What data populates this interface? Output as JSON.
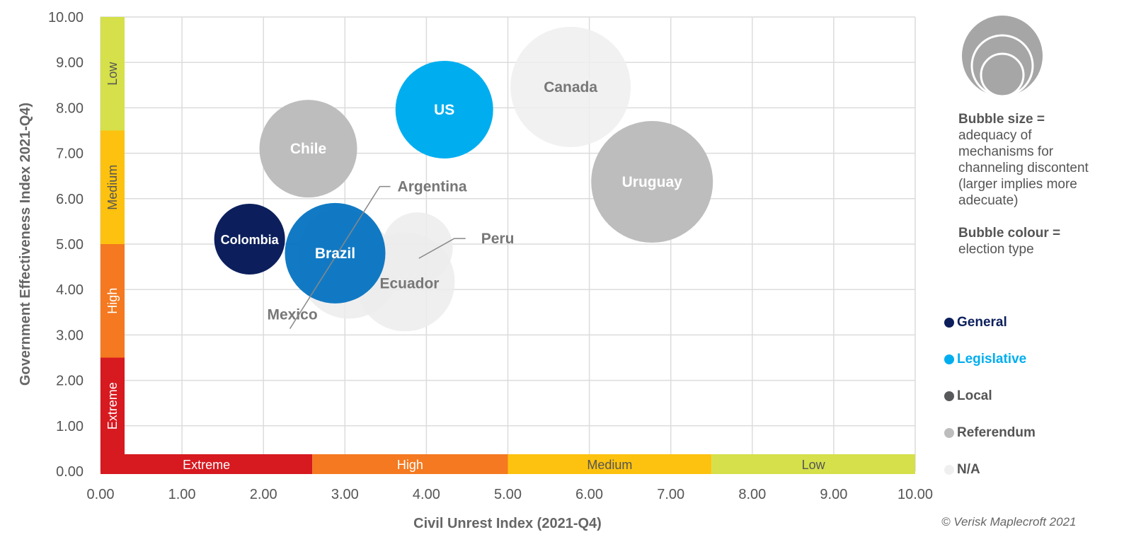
{
  "chart_data": {
    "type": "scatter",
    "subtype": "bubble",
    "xlabel": "Civil Unrest Index (2021-Q4)",
    "ylabel": "Government Effectiveness Index 2021-Q4)",
    "xlim": [
      0,
      10
    ],
    "ylim": [
      0,
      10
    ],
    "xticks": [
      "0.00",
      "1.00",
      "2.00",
      "3.00",
      "4.00",
      "5.00",
      "6.00",
      "7.00",
      "8.00",
      "9.00",
      "10.00"
    ],
    "yticks": [
      "0.00",
      "1.00",
      "2.00",
      "3.00",
      "4.00",
      "5.00",
      "6.00",
      "7.00",
      "8.00",
      "9.00",
      "10.00"
    ],
    "grid": true,
    "x_bands": [
      {
        "label": "Extreme",
        "from": 0,
        "to": 2.6,
        "color": "#d71920"
      },
      {
        "label": "High",
        "from": 2.6,
        "to": 5.0,
        "color": "#f47920"
      },
      {
        "label": "Medium",
        "from": 5.0,
        "to": 7.5,
        "color": "#fdc20f"
      },
      {
        "label": "Low",
        "from": 7.5,
        "to": 10,
        "color": "#d5e04a"
      }
    ],
    "y_bands": [
      {
        "label": "Extreme",
        "from": 0.4,
        "to": 2.5,
        "color": "#d71920"
      },
      {
        "label": "High",
        "from": 2.5,
        "to": 5.0,
        "color": "#f47920"
      },
      {
        "label": "Medium",
        "from": 5.0,
        "to": 7.5,
        "color": "#fdc20f"
      },
      {
        "label": "Low",
        "from": 7.5,
        "to": 10,
        "color": "#d5e04a"
      }
    ],
    "points": [
      {
        "label": "Canada",
        "x": 5.77,
        "y": 8.46,
        "size": 85,
        "type": "N/A",
        "color": "#efefef",
        "label_color": "#777777"
      },
      {
        "label": "Uruguay",
        "x": 6.77,
        "y": 6.37,
        "size": 86,
        "type": "Referendum",
        "color": "#bdbdbd",
        "label_color": "#ffffff"
      },
      {
        "label": "Chile",
        "x": 2.55,
        "y": 7.1,
        "size": 69,
        "type": "Referendum",
        "color": "#bdbdbd",
        "label_color": "#ffffff"
      },
      {
        "label": "US",
        "x": 4.22,
        "y": 7.96,
        "size": 69,
        "type": "Legislative",
        "color": "#00aeef",
        "label_color": "#ffffff"
      },
      {
        "label": "Ecuador",
        "x": 3.74,
        "y": 4.17,
        "size": 70,
        "type": "N/A",
        "color": "#ececec",
        "label_color": "#777777"
      },
      {
        "label": "Peru",
        "x": 3.89,
        "y": 4.92,
        "size": 50,
        "type": "N/A",
        "color": "#ececec",
        "label_color": "#777777"
      },
      {
        "label": "Mexico",
        "x": 3.05,
        "y": 4.45,
        "size": 70,
        "type": "N/A",
        "color": "#ececec",
        "label_color": "#777777"
      },
      {
        "label": "Argentina",
        "x": 2.95,
        "y": 4.85,
        "size": 60,
        "type": "N/A",
        "color": "#ececec",
        "label_color": "#777777"
      },
      {
        "label": "Brazil",
        "x": 2.88,
        "y": 4.8,
        "size": 71,
        "type": "General",
        "color": "#0070c0",
        "label_color": "#ffffff"
      },
      {
        "label": "Colombia",
        "x": 1.83,
        "y": 5.11,
        "size": 50,
        "type": "General",
        "color": "#0c1f5c",
        "label_color": "#ffffff"
      }
    ],
    "legend": {
      "placement": "right",
      "size_title": "Bubble size =",
      "size_desc": "adequacy of mechanisms for channeling discontent (larger implies more adecuate)",
      "colour_title": "Bubble colour =",
      "colour_desc": "election type",
      "items": [
        {
          "label": "General",
          "color": "#0c1f5c"
        },
        {
          "label": "Legislative",
          "color": "#00aeef"
        },
        {
          "label": "Local",
          "color": "#58595b"
        },
        {
          "label": "Referendum",
          "color": "#bdbdbd"
        },
        {
          "label": "N/A",
          "color": "#efefef"
        }
      ]
    }
  },
  "credit": "© Verisk Maplecroft 2021"
}
